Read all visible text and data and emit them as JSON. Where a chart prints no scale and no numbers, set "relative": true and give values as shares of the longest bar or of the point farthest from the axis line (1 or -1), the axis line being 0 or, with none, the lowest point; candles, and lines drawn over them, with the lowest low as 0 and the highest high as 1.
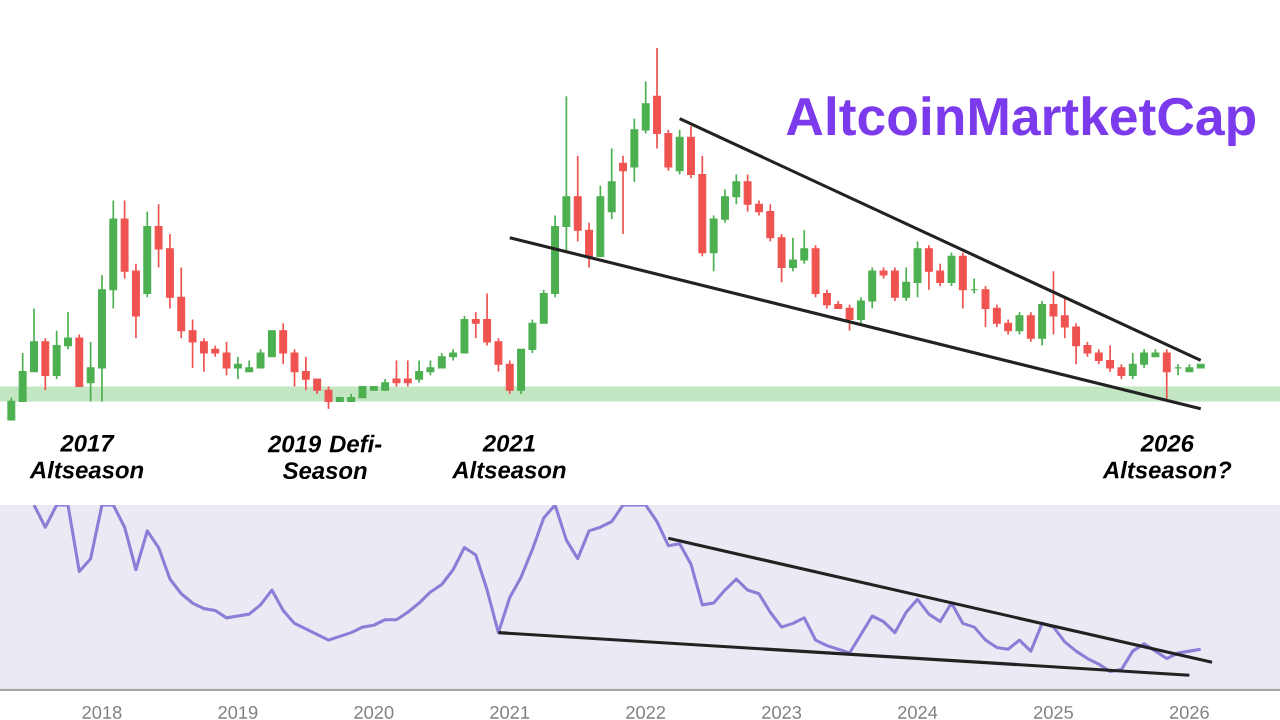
{
  "chart_data": [
    {
      "type": "candlestick",
      "title": "AltcoinMartketCap",
      "relative": true,
      "categories": [
        null,
        null,
        null,
        null,
        null,
        null,
        null,
        null,
        null,
        null,
        null,
        null,
        null,
        null,
        null,
        null,
        null,
        null,
        null,
        null,
        null,
        null,
        null,
        null,
        null,
        null,
        null,
        null,
        null,
        null,
        null,
        null,
        null,
        null,
        null,
        null,
        null,
        null,
        null,
        null,
        null,
        null,
        null,
        null,
        null,
        null,
        null,
        null,
        null,
        null,
        null,
        null,
        null,
        null,
        null,
        null,
        null,
        null,
        null,
        null,
        null,
        null,
        null,
        null,
        null,
        null,
        null,
        null,
        null,
        null,
        null,
        null,
        null,
        null,
        null,
        null,
        null,
        null,
        null,
        null,
        null,
        null,
        null,
        null,
        null,
        null,
        null,
        null,
        null,
        null,
        null,
        null,
        null,
        null,
        null,
        null,
        null,
        null,
        null,
        null,
        null,
        null,
        null,
        null,
        null,
        null
      ],
      "ohlc": [
        [
          0,
          0.06,
          0,
          0.05
        ],
        [
          0.05,
          0.18,
          0.05,
          0.13
        ],
        [
          0.13,
          0.3,
          0.13,
          0.21
        ],
        [
          0.21,
          0.22,
          0.08,
          0.12
        ],
        [
          0.12,
          0.24,
          0.11,
          0.2
        ],
        [
          0.2,
          0.29,
          0.19,
          0.22
        ],
        [
          0.22,
          0.23,
          0.09,
          0.09
        ],
        [
          0.1,
          0.21,
          0.05,
          0.14
        ],
        [
          0.14,
          0.39,
          0.05,
          0.35
        ],
        [
          0.35,
          0.59,
          0.3,
          0.54
        ],
        [
          0.54,
          0.59,
          0.38,
          0.4
        ],
        [
          0.4,
          0.42,
          0.22,
          0.28
        ],
        [
          0.34,
          0.56,
          0.33,
          0.52
        ],
        [
          0.52,
          0.58,
          0.41,
          0.46
        ],
        [
          0.46,
          0.5,
          0.3,
          0.33
        ],
        [
          0.33,
          0.41,
          0.22,
          0.24
        ],
        [
          0.24,
          0.27,
          0.14,
          0.21
        ],
        [
          0.21,
          0.22,
          0.13,
          0.18
        ],
        [
          0.19,
          0.2,
          0.17,
          0.18
        ],
        [
          0.18,
          0.21,
          0.12,
          0.14
        ],
        [
          0.14,
          0.17,
          0.11,
          0.15
        ],
        [
          0.13,
          0.16,
          0.13,
          0.14
        ],
        [
          0.14,
          0.19,
          0.14,
          0.18
        ],
        [
          0.17,
          0.24,
          0.17,
          0.24
        ],
        [
          0.24,
          0.26,
          0.15,
          0.18
        ],
        [
          0.18,
          0.19,
          0.09,
          0.13
        ],
        [
          0.13,
          0.17,
          0.08,
          0.11
        ],
        [
          0.11,
          0.11,
          0.07,
          0.08
        ],
        [
          0.08,
          0.09,
          0.03,
          0.05
        ],
        [
          0.05,
          0.06,
          0.05,
          0.06
        ],
        [
          0.05,
          0.07,
          0.05,
          0.06
        ],
        [
          0.06,
          0.09,
          0.06,
          0.09
        ],
        [
          0.08,
          0.09,
          0.08,
          0.09
        ],
        [
          0.08,
          0.11,
          0.08,
          0.1
        ],
        [
          0.11,
          0.16,
          0.09,
          0.1
        ],
        [
          0.11,
          0.16,
          0.09,
          0.1
        ],
        [
          0.11,
          0.16,
          0.1,
          0.13
        ],
        [
          0.13,
          0.16,
          0.12,
          0.14
        ],
        [
          0.14,
          0.18,
          0.14,
          0.17
        ],
        [
          0.17,
          0.19,
          0.16,
          0.18
        ],
        [
          0.18,
          0.28,
          0.18,
          0.27
        ],
        [
          0.27,
          0.29,
          0.22,
          0.26
        ],
        [
          0.27,
          0.34,
          0.2,
          0.21
        ],
        [
          0.21,
          0.22,
          0.13,
          0.15
        ],
        [
          0.15,
          0.16,
          0.07,
          0.08
        ],
        [
          0.08,
          0.19,
          0.07,
          0.19
        ],
        [
          0.19,
          0.27,
          0.18,
          0.26
        ],
        [
          0.26,
          0.35,
          0.26,
          0.34
        ],
        [
          0.34,
          0.55,
          0.33,
          0.52
        ],
        [
          0.52,
          0.87,
          0.45,
          0.6
        ],
        [
          0.6,
          0.71,
          0.48,
          0.51
        ],
        [
          0.51,
          0.53,
          0.41,
          0.44
        ],
        [
          0.44,
          0.63,
          0.44,
          0.6
        ],
        [
          0.56,
          0.73,
          0.54,
          0.64
        ],
        [
          0.69,
          0.71,
          0.5,
          0.67
        ],
        [
          0.68,
          0.81,
          0.64,
          0.78
        ],
        [
          0.78,
          0.91,
          0.77,
          0.85
        ],
        [
          0.87,
          1,
          0.73,
          0.77
        ],
        [
          0.77,
          0.78,
          0.67,
          0.68
        ],
        [
          0.67,
          0.78,
          0.66,
          0.76
        ],
        [
          0.76,
          0.79,
          0.65,
          0.66
        ],
        [
          0.66,
          0.71,
          0.44,
          0.45
        ],
        [
          0.45,
          0.55,
          0.4,
          0.54
        ],
        [
          0.54,
          0.62,
          0.53,
          0.6
        ],
        [
          0.6,
          0.66,
          0.58,
          0.64
        ],
        [
          0.64,
          0.66,
          0.56,
          0.58
        ],
        [
          0.58,
          0.59,
          0.55,
          0.56
        ],
        [
          0.56,
          0.58,
          0.48,
          0.49
        ],
        [
          0.49,
          0.5,
          0.37,
          0.41
        ],
        [
          0.41,
          0.49,
          0.4,
          0.43
        ],
        [
          0.43,
          0.51,
          0.42,
          0.46
        ],
        [
          0.46,
          0.47,
          0.33,
          0.34
        ],
        [
          0.34,
          0.35,
          0.3,
          0.31
        ],
        [
          0.31,
          0.32,
          0.3,
          0.3
        ],
        [
          0.3,
          0.31,
          0.24,
          0.27
        ],
        [
          0.27,
          0.33,
          0.26,
          0.32
        ],
        [
          0.32,
          0.41,
          0.3,
          0.4
        ],
        [
          0.4,
          0.41,
          0.38,
          0.39
        ],
        [
          0.4,
          0.41,
          0.32,
          0.33
        ],
        [
          0.33,
          0.41,
          0.32,
          0.37
        ],
        [
          0.37,
          0.48,
          0.33,
          0.46
        ],
        [
          0.46,
          0.47,
          0.35,
          0.4
        ],
        [
          0.4,
          0.42,
          0.36,
          0.37
        ],
        [
          0.37,
          0.45,
          0.36,
          0.44
        ],
        [
          0.44,
          0.45,
          0.3,
          0.35
        ],
        [
          0.35,
          0.38,
          0.34,
          0.35
        ],
        [
          0.35,
          0.36,
          0.25,
          0.3
        ],
        [
          0.3,
          0.31,
          0.25,
          0.26
        ],
        [
          0.26,
          0.27,
          0.23,
          0.24
        ],
        [
          0.24,
          0.29,
          0.23,
          0.28
        ],
        [
          0.28,
          0.29,
          0.21,
          0.22
        ],
        [
          0.22,
          0.32,
          0.2,
          0.31
        ],
        [
          0.31,
          0.4,
          0.23,
          0.28
        ],
        [
          0.28,
          0.33,
          0.22,
          0.25
        ],
        [
          0.25,
          0.26,
          0.15,
          0.2
        ],
        [
          0.2,
          0.21,
          0.17,
          0.18
        ],
        [
          0.18,
          0.19,
          0.15,
          0.16
        ],
        [
          0.16,
          0.2,
          0.13,
          0.14
        ],
        [
          0.14,
          0.15,
          0.11,
          0.12
        ],
        [
          0.12,
          0.18,
          0.11,
          0.15
        ],
        [
          0.15,
          0.19,
          0.14,
          0.18
        ],
        [
          0.17,
          0.19,
          0.17,
          0.18
        ],
        [
          0.18,
          0.19,
          0.05,
          0.13
        ],
        [
          0.14,
          0.15,
          0.12,
          0.14
        ],
        [
          0.13,
          0.15,
          0.13,
          0.14
        ],
        [
          0.14,
          0.15,
          0.14,
          0.15
        ]
      ],
      "colors": [
        "#4caf50",
        "#4caf50",
        "#4caf50",
        "#ef5350",
        "#4caf50",
        "#4caf50",
        "#ef5350",
        "#4caf50",
        "#4caf50",
        "#4caf50",
        "#ef5350",
        "#ef5350",
        "#4caf50",
        "#ef5350",
        "#ef5350",
        "#ef5350",
        "#ef5350",
        "#ef5350",
        "#ef5350",
        "#ef5350",
        "#4caf50",
        "#4caf50",
        "#4caf50",
        "#4caf50",
        "#ef5350",
        "#ef5350",
        "#ef5350",
        "#ef5350",
        "#ef5350",
        "#4caf50",
        "#4caf50",
        "#4caf50",
        "#4caf50",
        "#4caf50",
        "#ef5350",
        "#ef5350",
        "#4caf50",
        "#4caf50",
        "#4caf50",
        "#4caf50",
        "#4caf50",
        "#ef5350",
        "#ef5350",
        "#ef5350",
        "#ef5350",
        "#4caf50",
        "#4caf50",
        "#4caf50",
        "#4caf50",
        "#4caf50",
        "#ef5350",
        "#ef5350",
        "#4caf50",
        "#4caf50",
        "#ef5350",
        "#4caf50",
        "#4caf50",
        "#ef5350",
        "#ef5350",
        "#4caf50",
        "#ef5350",
        "#ef5350",
        "#4caf50",
        "#4caf50",
        "#4caf50",
        "#ef5350",
        "#ef5350",
        "#ef5350",
        "#ef5350",
        "#4caf50",
        "#4caf50",
        "#ef5350",
        "#ef5350",
        "#ef5350",
        "#ef5350",
        "#4caf50",
        "#4caf50",
        "#ef5350",
        "#ef5350",
        "#4caf50",
        "#4caf50",
        "#ef5350",
        "#ef5350",
        "#4caf50",
        "#ef5350",
        "#4caf50",
        "#ef5350",
        "#ef5350",
        "#ef5350",
        "#4caf50",
        "#ef5350",
        "#4caf50",
        "#ef5350",
        "#ef5350",
        "#ef5350",
        "#ef5350",
        "#ef5350",
        "#ef5350",
        "#ef5350",
        "#4caf50",
        "#4caf50",
        "#4caf50",
        "#ef5350",
        "#4caf50",
        "#4caf50",
        "#4caf50"
      ],
      "series": [
        {
          "type": "line",
          "values": [
            null,
            null,
            null,
            null,
            null,
            null,
            null,
            null,
            null,
            null,
            null,
            null,
            null,
            null,
            null,
            null,
            null,
            null,
            null,
            null,
            null,
            null,
            null,
            null,
            null,
            null,
            null,
            null,
            null,
            null,
            null,
            null,
            null,
            null,
            null,
            null,
            null,
            null,
            null,
            null,
            null,
            null,
            null,
            null,
            null,
            null,
            null,
            null,
            null,
            null,
            null,
            null,
            null,
            null,
            null,
            null,
            null,
            null,
            null,
            0.81,
            null,
            null,
            null,
            null,
            null,
            null,
            null,
            null,
            null,
            null,
            null,
            null,
            null,
            null,
            null,
            null,
            null,
            null,
            null,
            null,
            null,
            null,
            null,
            null,
            null,
            null,
            null,
            null,
            null,
            null,
            null,
            null,
            null,
            null,
            null,
            null,
            null,
            null,
            null,
            null,
            null,
            null,
            null,
            null,
            null,
            0.16
          ],
          "color": "#222222"
        },
        {
          "type": "line",
          "values": [
            null,
            null,
            null,
            null,
            null,
            null,
            null,
            null,
            null,
            null,
            null,
            null,
            null,
            null,
            null,
            null,
            null,
            null,
            null,
            null,
            null,
            null,
            null,
            null,
            null,
            null,
            null,
            null,
            null,
            null,
            null,
            null,
            null,
            null,
            null,
            null,
            null,
            null,
            null,
            null,
            null,
            null,
            null,
            null,
            0.49,
            null,
            null,
            null,
            null,
            null,
            null,
            null,
            null,
            null,
            null,
            null,
            null,
            null,
            null,
            null,
            null,
            null,
            null,
            null,
            null,
            null,
            null,
            null,
            null,
            null,
            null,
            null,
            null,
            null,
            null,
            null,
            null,
            null,
            null,
            null,
            null,
            null,
            null,
            null,
            null,
            null,
            null,
            null,
            null,
            null,
            null,
            null,
            null,
            null,
            null,
            null,
            null,
            null,
            null,
            null,
            null,
            null,
            null,
            null,
            null,
            0.03
          ],
          "color": "#222222"
        }
      ],
      "bands": [
        {
          "axis": "y",
          "from": 0.05,
          "to": 0.09,
          "color": "#c3e6c3"
        }
      ],
      "annotations": [
        "2017 Altseason",
        "2019 Defi-Season",
        "2021 Altseason",
        "2026 Altseason?"
      ]
    },
    {
      "type": "line",
      "relative": true,
      "tick_labels": "x",
      "xticks": [
        {
          "value": "2018-01",
          "label": "2018"
        },
        {
          "value": "2019-01",
          "label": "2019"
        },
        {
          "value": "2020-01",
          "label": "2020"
        },
        {
          "value": "2021-01",
          "label": "2021"
        },
        {
          "value": "2022-01",
          "label": "2022"
        },
        {
          "value": "2023-01",
          "label": "2023"
        },
        {
          "value": "2024-01",
          "label": "2024"
        },
        {
          "value": "2025-01",
          "label": "2025"
        },
        {
          "value": "2026-01",
          "label": "2026"
        }
      ],
      "xlim": [
        "2017-04",
        "2026-09"
      ],
      "series": [
        {
          "x": [
            "2017-07",
            "2017-08",
            "2017-09",
            "2017-10",
            "2017-11",
            "2017-12",
            "2018-01",
            "2018-02",
            "2018-03",
            "2018-04",
            "2018-05",
            "2018-06",
            "2018-07",
            "2018-08",
            "2018-09",
            "2018-10",
            "2018-11",
            "2018-12",
            "2019-01",
            "2019-02",
            "2019-03",
            "2019-04",
            "2019-05",
            "2019-06",
            "2019-07",
            "2019-08",
            "2019-09",
            "2019-10",
            "2019-11",
            "2019-12",
            "2020-01",
            "2020-02",
            "2020-03",
            "2020-04",
            "2020-05",
            "2020-06",
            "2020-07",
            "2020-08",
            "2020-09",
            "2020-10",
            "2020-11",
            "2020-12",
            "2021-01",
            "2021-02",
            "2021-03",
            "2021-04",
            "2021-05",
            "2021-06",
            "2021-07",
            "2021-08",
            "2021-09",
            "2021-10",
            "2021-11",
            "2021-12",
            "2022-01",
            "2022-02",
            "2022-03",
            "2022-04",
            "2022-05",
            "2022-06",
            "2022-07",
            "2022-08",
            "2022-09",
            "2022-10",
            "2022-11",
            "2022-12",
            "2023-01",
            "2023-02",
            "2023-03",
            "2023-04",
            "2023-05",
            "2023-06",
            "2023-07",
            "2023-08",
            "2023-09",
            "2023-10",
            "2023-11",
            "2023-12",
            "2024-01",
            "2024-02",
            "2024-03",
            "2024-04",
            "2024-05",
            "2024-06",
            "2024-07",
            "2024-08",
            "2024-09",
            "2024-10",
            "2024-11",
            "2024-12",
            "2025-01",
            "2025-02",
            "2025-03",
            "2025-04",
            "2025-05",
            "2025-06",
            "2025-07",
            "2025-08",
            "2025-09",
            "2025-10",
            "2025-11",
            "2025-12",
            "2026-01",
            "2026-02"
          ],
          "values": [
            1,
            0.88,
            1,
            1,
            0.64,
            0.71,
            1,
            1,
            0.88,
            0.65,
            0.86,
            0.77,
            0.6,
            0.52,
            0.47,
            0.44,
            0.43,
            0.39,
            0.4,
            0.41,
            0.46,
            0.54,
            0.43,
            0.36,
            0.33,
            0.3,
            0.27,
            0.29,
            0.31,
            0.34,
            0.35,
            0.38,
            0.38,
            0.42,
            0.47,
            0.53,
            0.57,
            0.65,
            0.77,
            0.73,
            0.54,
            0.31,
            0.5,
            0.61,
            0.76,
            0.93,
            1,
            0.81,
            0.71,
            0.86,
            0.88,
            0.91,
            1,
            1,
            1,
            0.91,
            0.78,
            0.79,
            0.68,
            0.46,
            0.47,
            0.54,
            0.6,
            0.54,
            0.52,
            0.42,
            0.34,
            0.36,
            0.39,
            0.27,
            0.24,
            0.22,
            0.2,
            0.3,
            0.4,
            0.37,
            0.31,
            0.42,
            0.49,
            0.41,
            0.37,
            0.47,
            0.36,
            0.34,
            0.27,
            0.23,
            0.22,
            0.27,
            0.21,
            0.36,
            0.34,
            0.26,
            0.21,
            0.17,
            0.14,
            0.1,
            0.11,
            0.21,
            0.25,
            0.21,
            0.17,
            0.2,
            0.21,
            0.22
          ],
          "color": "#8a7fd6"
        },
        {
          "x": [
            "2022-03",
            "2026-03"
          ],
          "values": [
            0.82,
            0.15
          ],
          "color": "#222222"
        },
        {
          "x": [
            "2020-12",
            "2026-01"
          ],
          "values": [
            0.31,
            0.08
          ],
          "color": "#222222"
        }
      ]
    }
  ]
}
